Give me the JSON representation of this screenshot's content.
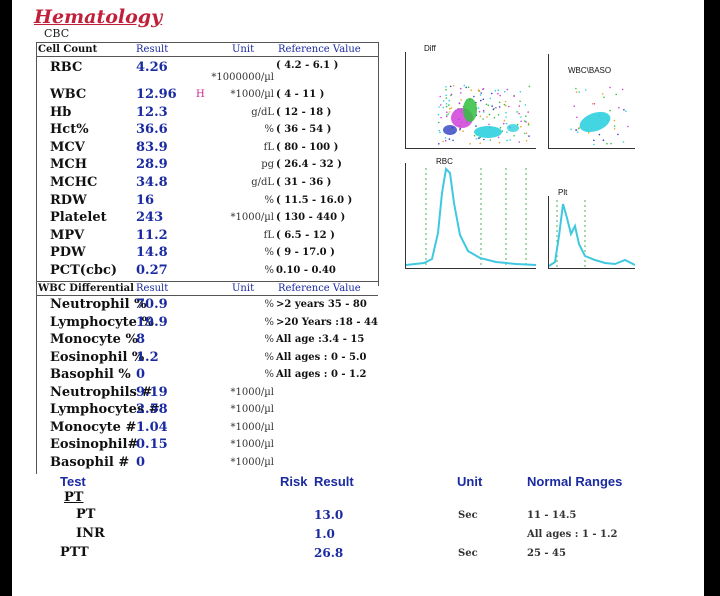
{
  "title": "Hematology",
  "subtitle": "CBC",
  "cbc_header": {
    "test": "Cell Count",
    "result": "Result",
    "unit": "Unit",
    "ref": "Reference Value"
  },
  "rbc": {
    "label": "RBC",
    "result": "4.26",
    "ref": "( 4.2 - 6.1 )",
    "unit": "*1000000/µl"
  },
  "cbc_rows": [
    {
      "label": "WBC",
      "result": "12.96",
      "flag": "H",
      "unit": "*1000/µl",
      "ref": "( 4 - 11 )"
    },
    {
      "label": "Hb",
      "result": "12.3",
      "flag": "",
      "unit": "g/dL",
      "ref": "( 12 - 18 )"
    },
    {
      "label": "Hct%",
      "result": "36.6",
      "flag": "",
      "unit": "%",
      "ref": "( 36 - 54 )"
    },
    {
      "label": "MCV",
      "result": "83.9",
      "flag": "",
      "unit": "fL",
      "ref": "( 80 - 100 )"
    },
    {
      "label": "MCH",
      "result": "28.9",
      "flag": "",
      "unit": "pg",
      "ref": "( 26.4 - 32 )"
    },
    {
      "label": "MCHC",
      "result": "34.8",
      "flag": "",
      "unit": "g/dL",
      "ref": "( 31 - 36 )"
    },
    {
      "label": "RDW",
      "result": "16",
      "flag": "",
      "unit": "%",
      "ref": "( 11.5 - 16.0 )"
    },
    {
      "label": "Platelet",
      "result": "243",
      "flag": "",
      "unit": "*1000/µl",
      "ref": "( 130 - 440 )"
    },
    {
      "label": "MPV",
      "result": "11.2",
      "flag": "",
      "unit": "fL",
      "ref": "( 6.5 - 12 )"
    },
    {
      "label": "PDW",
      "result": "14.8",
      "flag": "",
      "unit": "%",
      "ref": "( 9 - 17.0 )"
    },
    {
      "label": "PCT(cbc)",
      "result": "0.27",
      "flag": "",
      "unit": "%",
      "ref": "0.10 - 0.40"
    }
  ],
  "diff_header": {
    "test": "WBC Differential",
    "result": "Result",
    "unit": "Unit",
    "ref": "Reference Value"
  },
  "diff_rows": [
    {
      "label": "Neutrophil %",
      "result": "70.9",
      "unit": "%",
      "ref": ">2 years 35 - 80"
    },
    {
      "label": "Lymphocyte %",
      "result": "19.9",
      "unit": "%",
      "ref": ">20 Years :18 - 44"
    },
    {
      "label": "Monocyte %",
      "result": "8",
      "unit": "%",
      "ref": "All age :3.4 - 15"
    },
    {
      "label": "Eosinophil %",
      "result": "1.2",
      "unit": "%",
      "ref": "All ages : 0 - 5.0"
    },
    {
      "label": "Basophil %",
      "result": "0",
      "unit": "%",
      "ref": "All ages : 0 - 1.2"
    },
    {
      "label": "Neutrophils #",
      "result": "9.19",
      "unit": "*1000/µl",
      "ref": ""
    },
    {
      "label": "Lymphocytes #",
      "result": "2.58",
      "unit": "*1000/µl",
      "ref": ""
    },
    {
      "label": "Monocyte #",
      "result": "1.04",
      "unit": "*1000/µl",
      "ref": ""
    },
    {
      "label": "Eosinophil#",
      "result": "0.15",
      "unit": "*1000/µl",
      "ref": ""
    },
    {
      "label": "Basophil #",
      "result": "0",
      "unit": "*1000/µl",
      "ref": ""
    }
  ],
  "coag_header": {
    "test": "Test",
    "risk": "Risk",
    "result": "Result",
    "unit": "Unit",
    "normal": "Normal Ranges"
  },
  "coag_section": "PT",
  "coag_rows": [
    {
      "label": "PT",
      "result": "13.0",
      "unit": "Sec",
      "normal": "11 - 14.5"
    },
    {
      "label": "INR",
      "result": "1.0",
      "unit": "",
      "normal": "All ages : 1 - 1.2"
    },
    {
      "label": "PTT",
      "result": "26.8",
      "unit": "Sec",
      "normal": "25 - 45"
    }
  ],
  "plots": {
    "diff": "Diff",
    "wbc_baso": "WBC\\BASO",
    "rbc": "RBC",
    "plt": "Plt"
  },
  "colors": {
    "title": "#c0203a",
    "result": "#1a2aa0",
    "flag": "#d0208a",
    "histogram": "#3fc8e0"
  }
}
